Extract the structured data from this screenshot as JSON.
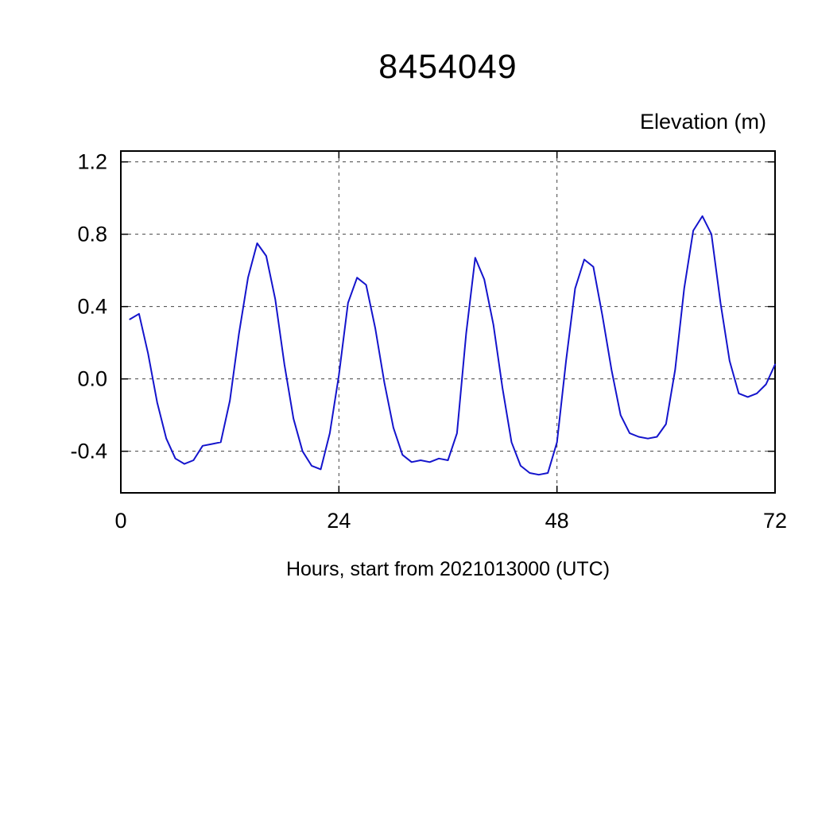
{
  "chart_data": {
    "type": "line",
    "title": "8454049",
    "ylabel": "Elevation (m)",
    "xlabel": "Hours, start from 2021013000 (UTC)",
    "xlim": [
      0,
      72
    ],
    "ylim": [
      -0.63,
      1.26
    ],
    "x_ticks": [
      0,
      24,
      48,
      72
    ],
    "x_tick_labels": [
      "0",
      "24",
      "48",
      "72"
    ],
    "y_ticks": [
      -0.4,
      0.0,
      0.4,
      0.8,
      1.2
    ],
    "y_tick_labels": [
      "-0.4",
      "0.0",
      "0.4",
      "0.8",
      "1.2"
    ],
    "grid": true,
    "grid_x": [
      24,
      48
    ],
    "legend_position": "none",
    "line_color": "#1414cc",
    "axis_color": "#000000",
    "grid_color": "#444444",
    "series": [
      {
        "name": "elevation",
        "x": [
          1,
          2,
          3,
          4,
          5,
          6,
          7,
          8,
          9,
          10,
          11,
          12,
          13,
          14,
          15,
          16,
          17,
          18,
          19,
          20,
          21,
          22,
          23,
          24,
          25,
          26,
          27,
          28,
          29,
          30,
          31,
          32,
          33,
          34,
          35,
          36,
          37,
          38,
          39,
          40,
          41,
          42,
          43,
          44,
          45,
          46,
          47,
          48,
          49,
          50,
          51,
          52,
          53,
          54,
          55,
          56,
          57,
          58,
          59,
          60,
          61,
          62,
          63,
          64,
          65,
          66,
          67,
          68,
          69,
          70,
          71,
          72
        ],
        "y": [
          0.33,
          0.36,
          0.14,
          -0.13,
          -0.33,
          -0.44,
          -0.47,
          -0.45,
          -0.37,
          -0.36,
          -0.35,
          -0.12,
          0.25,
          0.56,
          0.75,
          0.68,
          0.44,
          0.08,
          -0.22,
          -0.4,
          -0.48,
          -0.5,
          -0.3,
          0.02,
          0.42,
          0.56,
          0.52,
          0.28,
          -0.02,
          -0.27,
          -0.42,
          -0.46,
          -0.45,
          -0.46,
          -0.44,
          -0.45,
          -0.3,
          0.25,
          0.67,
          0.55,
          0.3,
          -0.05,
          -0.35,
          -0.48,
          -0.52,
          -0.53,
          -0.52,
          -0.35,
          0.1,
          0.5,
          0.66,
          0.62,
          0.35,
          0.05,
          -0.2,
          -0.3,
          -0.32,
          -0.33,
          -0.32,
          -0.25,
          0.05,
          0.5,
          0.82,
          0.9,
          0.8,
          0.42,
          0.1,
          -0.08,
          -0.1,
          -0.08,
          -0.03,
          0.08
        ]
      }
    ]
  }
}
